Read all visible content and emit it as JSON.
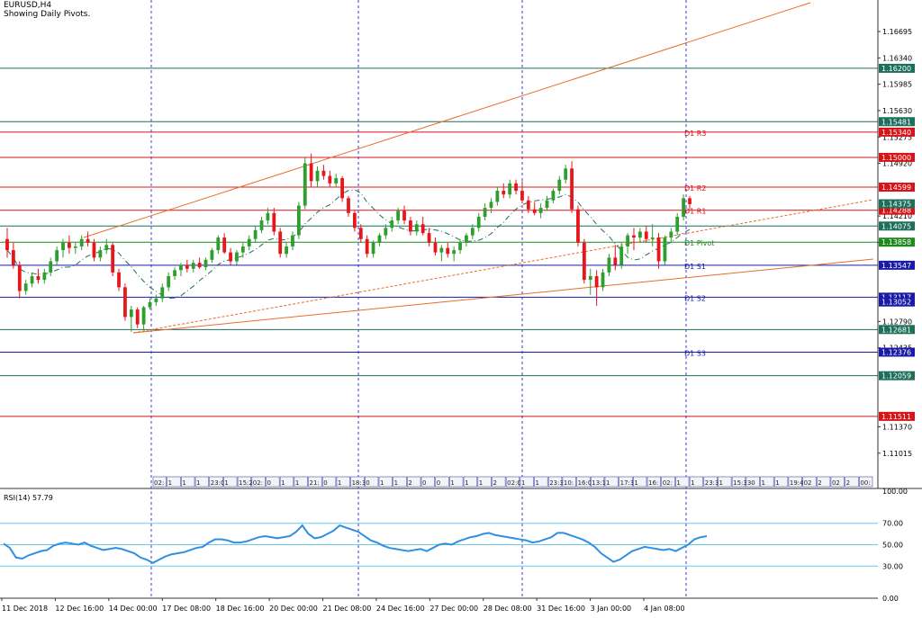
{
  "window": {
    "title": "EURUSD,H4",
    "subtitle": "Showing Daily Pivots."
  },
  "colors": {
    "bull": "#2e9e2e",
    "bear": "#e8151b",
    "blue_line": "#1a1aa6",
    "red_line": "#d81418",
    "teal_line": "#1d6f5c",
    "green_line": "#1f8a1f",
    "cyan_line": "#66ccee",
    "rsi_line": "#2f8fe0",
    "trend": "#e86c2c",
    "grid_v": "#3b3bd6",
    "axis": "#333333"
  },
  "price_axis": {
    "range": [
      1.1054,
      1.1712
    ],
    "ticks": [
      "1.16695",
      "1.16340",
      "1.15985",
      "1.15630",
      "1.15275",
      "1.14920",
      "1.14210",
      "1.13855",
      "1.12790",
      "1.12435",
      "1.11370",
      "1.11015"
    ]
  },
  "levels": [
    {
      "value": 1.162,
      "label": "1.16200",
      "color": "#1d6f5c",
      "tag": ""
    },
    {
      "value": 1.15481,
      "label": "1.15481",
      "color": "#1d6f5c",
      "tag": ""
    },
    {
      "value": 1.1534,
      "label": "1.15340",
      "color": "#d81418",
      "tag": "D1 R3"
    },
    {
      "value": 1.15,
      "label": "1.15000",
      "color": "#d81418",
      "tag": ""
    },
    {
      "value": 1.14599,
      "label": "1.14599",
      "color": "#d81418",
      "tag": "D1 R2"
    },
    {
      "value": 1.14288,
      "label": "1.14288",
      "color": "#d81418",
      "tag": "D1 R1"
    },
    {
      "value": 1.14075,
      "label": "1.14075",
      "color": "#1d6f5c",
      "tag": ""
    },
    {
      "value": 1.13858,
      "label": "1.13858",
      "color": "#1f8a1f",
      "tag": "D1 Pivot"
    },
    {
      "value": 1.13547,
      "label": "1.13547",
      "color": "#1a1aa6",
      "tag": "D1 S1"
    },
    {
      "value": 1.13117,
      "label": "1.13117",
      "color": "#1a1aa6",
      "tag": "D1 S2"
    },
    {
      "value": 1.12681,
      "label": "1.12681",
      "color": "#1d6f5c",
      "tag": ""
    },
    {
      "value": 1.12376,
      "label": "1.12376",
      "color": "#1a1aa6",
      "tag": "D1 S3"
    },
    {
      "value": 1.12059,
      "label": "1.12059",
      "color": "#1d6f5c",
      "tag": ""
    },
    {
      "value": 1.11511,
      "label": "1.11511",
      "color": "#d81418",
      "tag": ""
    }
  ],
  "extra_labels": [
    {
      "value": 1.14375,
      "label": "1.14375",
      "color": "#1d6f5c"
    },
    {
      "value": 1.13052,
      "label": "1.13052",
      "color": "#1a1aa6"
    }
  ],
  "current_price": {
    "value": 1.14375,
    "label": "1.14375"
  },
  "candles": [
    [
      1.139,
      1.1405,
      1.1365,
      1.1375
    ],
    [
      1.1375,
      1.1385,
      1.135,
      1.1355
    ],
    [
      1.1355,
      1.136,
      1.131,
      1.132
    ],
    [
      1.132,
      1.1335,
      1.1315,
      1.133
    ],
    [
      1.133,
      1.1345,
      1.1325,
      1.134
    ],
    [
      1.134,
      1.135,
      1.133,
      1.1335
    ],
    [
      1.1335,
      1.135,
      1.133,
      1.1345
    ],
    [
      1.1345,
      1.1365,
      1.134,
      1.136
    ],
    [
      1.136,
      1.138,
      1.1355,
      1.1375
    ],
    [
      1.1375,
      1.139,
      1.1365,
      1.1385
    ],
    [
      1.1385,
      1.1395,
      1.137,
      1.1378
    ],
    [
      1.1378,
      1.1385,
      1.137,
      1.138
    ],
    [
      1.138,
      1.1395,
      1.1375,
      1.139
    ],
    [
      1.139,
      1.14,
      1.138,
      1.1385
    ],
    [
      1.1385,
      1.139,
      1.136,
      1.1365
    ],
    [
      1.1365,
      1.138,
      1.136,
      1.1375
    ],
    [
      1.1375,
      1.139,
      1.137,
      1.1382
    ],
    [
      1.1382,
      1.1385,
      1.134,
      1.1345
    ],
    [
      1.1345,
      1.135,
      1.132,
      1.1325
    ],
    [
      1.1325,
      1.133,
      1.128,
      1.1285
    ],
    [
      1.1285,
      1.13,
      1.1265,
      1.1295
    ],
    [
      1.1295,
      1.1298,
      1.127,
      1.1275
    ],
    [
      1.1275,
      1.13,
      1.1268,
      1.1298
    ],
    [
      1.1298,
      1.131,
      1.1295,
      1.1305
    ],
    [
      1.1305,
      1.1315,
      1.13,
      1.131
    ],
    [
      1.131,
      1.133,
      1.1305,
      1.1325
    ],
    [
      1.1325,
      1.1345,
      1.132,
      1.134
    ],
    [
      1.134,
      1.1352,
      1.1335,
      1.1348
    ],
    [
      1.1348,
      1.1358,
      1.134,
      1.1355
    ],
    [
      1.1355,
      1.1362,
      1.1345,
      1.135
    ],
    [
      1.135,
      1.1362,
      1.1345,
      1.1358
    ],
    [
      1.1358,
      1.1365,
      1.135,
      1.1352
    ],
    [
      1.1352,
      1.1365,
      1.1348,
      1.1362
    ],
    [
      1.1362,
      1.1378,
      1.1358,
      1.1375
    ],
    [
      1.1375,
      1.1395,
      1.137,
      1.1392
    ],
    [
      1.1392,
      1.1398,
      1.137,
      1.1372
    ],
    [
      1.1372,
      1.1378,
      1.1355,
      1.136
    ],
    [
      1.136,
      1.1375,
      1.1355,
      1.1372
    ],
    [
      1.1372,
      1.1385,
      1.1365,
      1.138
    ],
    [
      1.138,
      1.1395,
      1.1375,
      1.139
    ],
    [
      1.139,
      1.1408,
      1.1385,
      1.1402
    ],
    [
      1.1402,
      1.142,
      1.1398,
      1.1415
    ],
    [
      1.1415,
      1.1432,
      1.141,
      1.1425
    ],
    [
      1.1425,
      1.1432,
      1.1395,
      1.14
    ],
    [
      1.14,
      1.1405,
      1.1365,
      1.137
    ],
    [
      1.137,
      1.1385,
      1.1365,
      1.138
    ],
    [
      1.138,
      1.14,
      1.1375,
      1.1395
    ],
    [
      1.1395,
      1.144,
      1.139,
      1.1435
    ],
    [
      1.1435,
      1.15,
      1.143,
      1.1492
    ],
    [
      1.1492,
      1.1505,
      1.146,
      1.1468
    ],
    [
      1.1468,
      1.1488,
      1.146,
      1.1482
    ],
    [
      1.1482,
      1.149,
      1.147,
      1.1475
    ],
    [
      1.1475,
      1.1482,
      1.146,
      1.1465
    ],
    [
      1.1465,
      1.1478,
      1.146,
      1.1472
    ],
    [
      1.1472,
      1.1475,
      1.144,
      1.1445
    ],
    [
      1.1445,
      1.1448,
      1.142,
      1.1425
    ],
    [
      1.1425,
      1.1428,
      1.14,
      1.1405
    ],
    [
      1.1405,
      1.141,
      1.1385,
      1.139
    ],
    [
      1.139,
      1.1395,
      1.1365,
      1.137
    ],
    [
      1.137,
      1.1388,
      1.1365,
      1.1385
    ],
    [
      1.1385,
      1.1398,
      1.138,
      1.1395
    ],
    [
      1.1395,
      1.141,
      1.139,
      1.1405
    ],
    [
      1.1405,
      1.142,
      1.14,
      1.1415
    ],
    [
      1.1415,
      1.1432,
      1.141,
      1.1428
    ],
    [
      1.1428,
      1.1435,
      1.141,
      1.1415
    ],
    [
      1.1415,
      1.142,
      1.1395,
      1.14
    ],
    [
      1.14,
      1.1415,
      1.1395,
      1.141
    ],
    [
      1.141,
      1.142,
      1.1395,
      1.1398
    ],
    [
      1.1398,
      1.1405,
      1.138,
      1.1385
    ],
    [
      1.1385,
      1.1392,
      1.1368,
      1.1372
    ],
    [
      1.1372,
      1.1382,
      1.136,
      1.1378
    ],
    [
      1.1378,
      1.1385,
      1.1365,
      1.137
    ],
    [
      1.137,
      1.138,
      1.136,
      1.1375
    ],
    [
      1.1375,
      1.139,
      1.137,
      1.1385
    ],
    [
      1.1385,
      1.1398,
      1.138,
      1.1395
    ],
    [
      1.1395,
      1.141,
      1.139,
      1.1405
    ],
    [
      1.1405,
      1.1425,
      1.14,
      1.142
    ],
    [
      1.142,
      1.1438,
      1.1415,
      1.1432
    ],
    [
      1.1432,
      1.1445,
      1.1425,
      1.144
    ],
    [
      1.144,
      1.146,
      1.1435,
      1.1455
    ],
    [
      1.1455,
      1.1465,
      1.1445,
      1.145
    ],
    [
      1.145,
      1.147,
      1.1445,
      1.1465
    ],
    [
      1.1465,
      1.147,
      1.145,
      1.1455
    ],
    [
      1.1455,
      1.1468,
      1.1438,
      1.1442
    ],
    [
      1.1442,
      1.1448,
      1.1425,
      1.143
    ],
    [
      1.143,
      1.144,
      1.1422,
      1.1425
    ],
    [
      1.1425,
      1.1438,
      1.1418,
      1.1432
    ],
    [
      1.1432,
      1.1448,
      1.1428,
      1.1442
    ],
    [
      1.1442,
      1.1458,
      1.1438,
      1.1455
    ],
    [
      1.1455,
      1.1475,
      1.145,
      1.147
    ],
    [
      1.147,
      1.149,
      1.1465,
      1.1485
    ],
    [
      1.1485,
      1.1495,
      1.1425,
      1.143
    ],
    [
      1.143,
      1.1435,
      1.138,
      1.1385
    ],
    [
      1.1385,
      1.139,
      1.133,
      1.1335
    ],
    [
      1.1335,
      1.135,
      1.1315,
      1.134
    ],
    [
      1.134,
      1.1348,
      1.13,
      1.1325
    ],
    [
      1.1325,
      1.135,
      1.132,
      1.1345
    ],
    [
      1.1345,
      1.137,
      1.134,
      1.1365
    ],
    [
      1.1365,
      1.1382,
      1.1348,
      1.1355
    ],
    [
      1.1355,
      1.1385,
      1.135,
      1.138
    ],
    [
      1.138,
      1.1398,
      1.137,
      1.1395
    ],
    [
      1.1395,
      1.1405,
      1.1375,
      1.1392
    ],
    [
      1.1392,
      1.1405,
      1.1385,
      1.14
    ],
    [
      1.14,
      1.1408,
      1.1385,
      1.139
    ],
    [
      1.139,
      1.141,
      1.138,
      1.1392
    ],
    [
      1.1392,
      1.1398,
      1.135,
      1.136
    ],
    [
      1.136,
      1.1395,
      1.1355,
      1.1392
    ],
    [
      1.1392,
      1.1405,
      1.1385,
      1.14
    ],
    [
      1.14,
      1.1425,
      1.1395,
      1.142
    ],
    [
      1.142,
      1.145,
      1.1415,
      1.1445
    ],
    [
      1.1445,
      1.1448,
      1.143,
      1.1437
    ]
  ],
  "trendlines": [
    {
      "x1": 93,
      "y1": 264,
      "x2": 900,
      "y2": 3
    },
    {
      "x1": 148,
      "y1": 370,
      "x2": 970,
      "y2": 288
    },
    {
      "x1": 148,
      "y1": 370,
      "x2": 970,
      "y2": 222,
      "dashed": true
    }
  ],
  "vertical_grid_x": [
    168,
    398,
    580,
    762
  ],
  "tab_strip": {
    "labels": [
      "02:",
      "1",
      "1",
      "1",
      "23:00",
      "1",
      "15:2",
      "02:",
      "0",
      "1",
      "1",
      "21:",
      "0",
      "1",
      "18:30",
      "0",
      "1",
      "1",
      "2",
      "0",
      "0",
      "1",
      "1",
      "1",
      "2",
      "02:00",
      "1",
      "1",
      "23:30",
      "10:",
      "16:00",
      "13:10",
      "1",
      "17:30",
      "1",
      "16:",
      "02:",
      "1",
      "1",
      "23:30",
      "1",
      "15:30",
      "30",
      "1",
      "1",
      "19:4",
      "02",
      "2",
      "02",
      "2",
      "00:"
    ]
  },
  "rsi": {
    "label": "RSI(14) 57.79",
    "range": [
      0,
      100
    ],
    "ticks": [
      "100.00",
      "70.00",
      "50.00",
      "30.00",
      "0.00"
    ],
    "levels": [
      70,
      50,
      30
    ],
    "values": [
      51,
      47,
      38,
      37,
      40,
      42,
      44,
      45,
      49,
      51,
      52,
      51,
      50,
      52,
      49,
      47,
      45,
      46,
      47,
      46,
      44,
      42,
      38,
      36,
      33,
      36,
      39,
      41,
      42,
      43,
      45,
      47,
      48,
      52,
      55,
      55,
      54,
      52,
      52,
      53,
      55,
      57,
      58,
      57,
      56,
      57,
      58,
      62,
      68,
      60,
      56,
      57,
      60,
      63,
      68,
      66,
      64,
      62,
      58,
      54,
      52,
      49,
      47,
      46,
      45,
      44,
      45,
      46,
      44,
      47,
      50,
      51,
      50,
      53,
      55,
      57,
      58,
      60,
      61,
      59,
      58,
      57,
      56,
      55,
      54,
      52,
      53,
      55,
      57,
      61,
      61,
      59,
      57,
      55,
      52,
      48,
      42,
      38,
      34,
      36,
      40,
      44,
      46,
      48,
      47,
      46,
      45,
      46,
      44,
      47,
      50,
      55,
      57,
      58
    ],
    "dates": [
      "11 Dec 2018",
      "12 Dec 16:00",
      "14 Dec 00:00",
      "17 Dec 08:00",
      "18 Dec 16:00",
      "20 Dec 00:00",
      "21 Dec 08:00",
      "24 Dec 16:00",
      "27 Dec 00:00",
      "28 Dec 08:00",
      "31 Dec 16:00",
      "3 Jan 00:00",
      "4 Jan 08:00"
    ]
  }
}
